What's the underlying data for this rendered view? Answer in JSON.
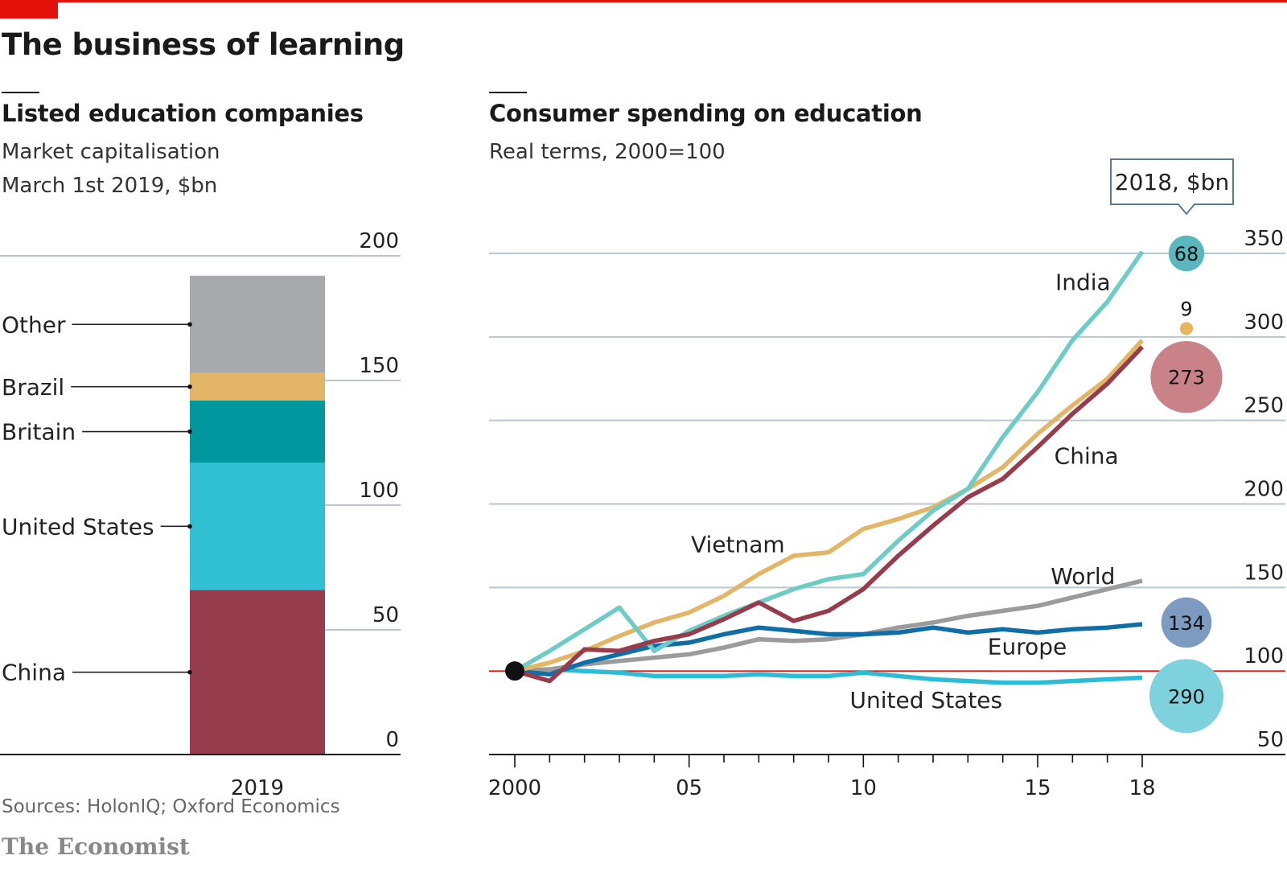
{
  "header": {
    "title": "The business of learning",
    "accent_color": "#e3120b"
  },
  "footer": {
    "sources": "Sources: HolonIQ; Oxford Economics",
    "logo": "The Economist"
  },
  "chart_data": [
    {
      "type": "bar",
      "stacked": true,
      "title": "Listed education companies",
      "subtitle_lines": [
        "Market capitalisation",
        "March 1st 2019, $bn"
      ],
      "categories": [
        "2019"
      ],
      "ylim": [
        0,
        200
      ],
      "yticks": [
        0,
        50,
        100,
        150,
        200
      ],
      "grid": true,
      "series": [
        {
          "name": "China",
          "values": [
            66
          ],
          "color": "#963c4c"
        },
        {
          "name": "United States",
          "values": [
            51
          ],
          "color": "#31c0d3"
        },
        {
          "name": "Britain",
          "values": [
            25
          ],
          "color": "#00989e"
        },
        {
          "name": "Brazil",
          "values": [
            11
          ],
          "color": "#e3b566"
        },
        {
          "name": "Other",
          "values": [
            39
          ],
          "color": "#a7a9ac"
        }
      ]
    },
    {
      "type": "line",
      "title": "Consumer spending on education",
      "subtitle": "Real terms, 2000=100",
      "x": [
        2000,
        2001,
        2002,
        2003,
        2004,
        2005,
        2006,
        2007,
        2008,
        2009,
        2010,
        2011,
        2012,
        2013,
        2014,
        2015,
        2016,
        2017,
        2018
      ],
      "xticks": [
        2000,
        2005,
        2010,
        2015,
        2018
      ],
      "xtick_labels": [
        "2000",
        "05",
        "10",
        "15",
        "18"
      ],
      "ylim": [
        50,
        350
      ],
      "yticks": [
        50,
        100,
        150,
        200,
        250,
        300,
        350
      ],
      "baseline": 100,
      "grid": true,
      "series": [
        {
          "name": "India",
          "color": "#6dcdc6",
          "values": [
            100,
            112,
            125,
            138,
            112,
            124,
            133,
            141,
            149,
            155,
            158,
            178,
            196,
            209,
            240,
            267,
            298,
            321,
            351
          ]
        },
        {
          "name": "Vietnam",
          "color": "#e3b566",
          "values": [
            100,
            105,
            112,
            121,
            129,
            135,
            145,
            158,
            169,
            171,
            185,
            191,
            198,
            209,
            222,
            242,
            259,
            275,
            298
          ]
        },
        {
          "name": "China",
          "color": "#963c4c",
          "values": [
            100,
            94,
            113,
            112,
            118,
            122,
            131,
            141,
            130,
            136,
            149,
            169,
            187,
            204,
            215,
            234,
            254,
            272,
            294
          ]
        },
        {
          "name": "World",
          "color": "#9b9b9b",
          "values": [
            100,
            101,
            104,
            106,
            108,
            110,
            114,
            119,
            118,
            119,
            122,
            126,
            129,
            133,
            136,
            139,
            144,
            149,
            154
          ]
        },
        {
          "name": "Europe",
          "color": "#0e6ea5",
          "values": [
            100,
            98,
            105,
            110,
            115,
            117,
            122,
            126,
            124,
            122,
            122,
            123,
            126,
            123,
            125,
            123,
            125,
            126,
            128
          ]
        },
        {
          "name": "United States",
          "color": "#2cbcd6",
          "values": [
            100,
            101,
            100,
            99,
            97,
            97,
            97,
            98,
            97,
            97,
            99,
            97,
            95,
            94,
            93,
            93,
            94,
            95,
            96
          ]
        }
      ],
      "bubbles": {
        "title": "2018, $bn",
        "items": [
          {
            "series": "India",
            "value": 68,
            "label": "68",
            "color": "#5ab7bd"
          },
          {
            "series": "Vietnam",
            "value": 9,
            "label": "9",
            "color": "#e8b55b"
          },
          {
            "series": "China",
            "value": 273,
            "label": "273",
            "color": "#c98388"
          },
          {
            "series": "Europe",
            "value": 134,
            "label": "134",
            "color": "#7d9bc1"
          },
          {
            "series": "United States",
            "value": 290,
            "label": "290",
            "color": "#7dd2de"
          }
        ]
      }
    }
  ]
}
